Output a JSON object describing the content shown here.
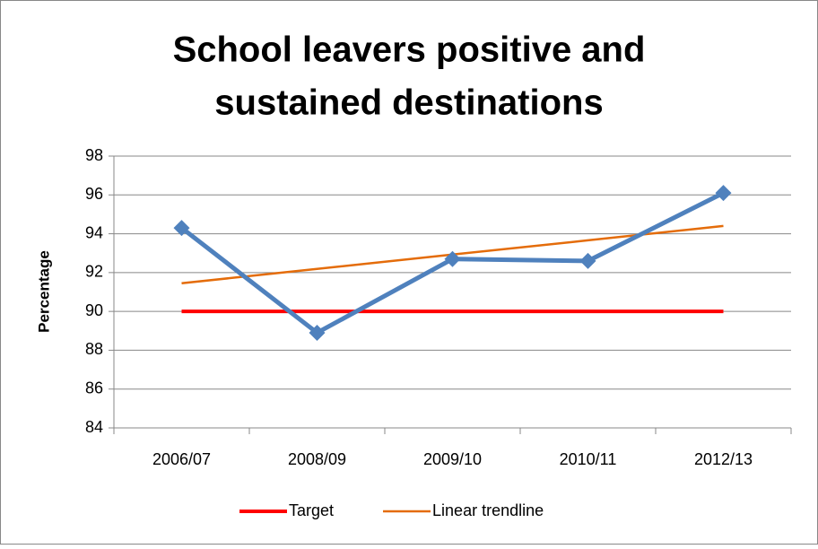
{
  "chart_data": {
    "type": "line",
    "title": [
      "School leavers positive and",
      "sustained destinations"
    ],
    "y_label": "Percentage",
    "categories": [
      "2006/07",
      "2008/09",
      "2009/10",
      "2010/11",
      "2012/13"
    ],
    "series": [
      {
        "color": "#4f81bd",
        "values": [
          94.3,
          88.9,
          92.7,
          92.6,
          96.1
        ],
        "marker": "diamond"
      },
      {
        "name": "Target",
        "color": "#ff0000",
        "values": [
          90,
          90,
          90,
          90,
          90
        ]
      },
      {
        "name": "Linear trendline",
        "color": "#e46c0a",
        "values": [
          91.45,
          92.19,
          92.93,
          93.66,
          94.4
        ]
      }
    ],
    "ylim": [
      84,
      98
    ],
    "yticks": [
      84,
      86,
      88,
      90,
      92,
      94,
      96,
      98
    ],
    "grid": true,
    "legend": "bottom"
  }
}
